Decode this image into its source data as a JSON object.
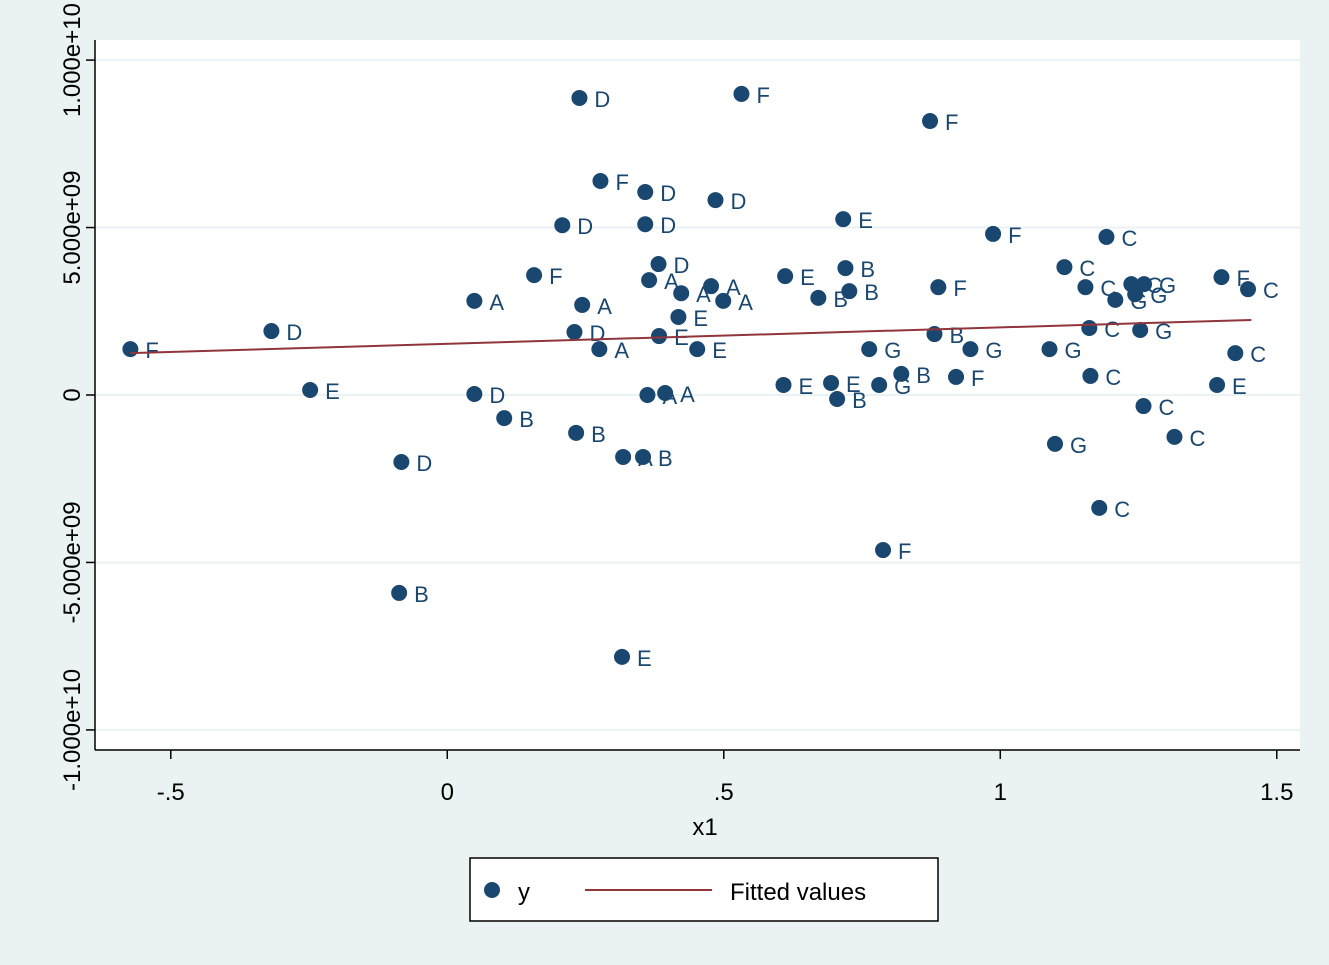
{
  "chart_data": {
    "type": "scatter",
    "xlabel": "x1",
    "xlim": [
      -0.637,
      1.542
    ],
    "ylim": [
      -10600000000.0,
      10600000000.0
    ],
    "xticks": [
      {
        "value": -0.5,
        "label": "-.5"
      },
      0,
      {
        "value": 0.5,
        "label": ".5"
      },
      1,
      1.5
    ],
    "yticks": [
      {
        "value": -10000000000.0,
        "label": "-1.000e+10"
      },
      {
        "value": -5000000000.0,
        "label": "-5.000e+09"
      },
      0,
      {
        "value": 5000000000.0,
        "label": "5.000e+09"
      },
      {
        "value": 10000000000.0,
        "label": "1.000e+10"
      }
    ],
    "grid": true,
    "legend": "bottom",
    "series": [
      {
        "name": "y",
        "type": "scatter",
        "color": "#1a476f",
        "x": [
          -0.573,
          -0.318,
          -0.248,
          -0.083,
          -0.087,
          0.049,
          0.049,
          0.103,
          0.157,
          0.208,
          0.239,
          0.244,
          0.23,
          0.233,
          0.277,
          0.275,
          0.318,
          0.316,
          0.358,
          0.358,
          0.365,
          0.382,
          0.383,
          0.362,
          0.354,
          0.394,
          0.418,
          0.423,
          0.452,
          0.477,
          0.485,
          0.499,
          0.532,
          0.611,
          0.608,
          0.671,
          0.694,
          0.705,
          0.716,
          0.72,
          0.727,
          0.763,
          0.781,
          0.788,
          0.821,
          0.873,
          0.881,
          0.888,
          0.92,
          0.946,
          0.987,
          1.089,
          1.099,
          1.116,
          1.154,
          1.161,
          1.163,
          1.179,
          1.192,
          1.208,
          1.237,
          1.244,
          1.26,
          1.253,
          1.259,
          1.315,
          1.392,
          1.4,
          1.425,
          1.448
        ],
        "values": [
          1370000000.0,
          1910000000.0,
          150000000.0,
          -2000000000.0,
          -5910000000.0,
          2810000000.0,
          30000000.0,
          -690000000.0,
          3580000000.0,
          5070000000.0,
          8870000000.0,
          2690000000.0,
          1880000000.0,
          -1130000000.0,
          6390000000.0,
          1370000000.0,
          -1850000000.0,
          -7820000000.0,
          6060000000.0,
          5100000000.0,
          3430000000.0,
          3910000000.0,
          1760000000.0,
          0.0,
          -1850000000.0,
          60000000.0,
          2330000000.0,
          3040000000.0,
          1370000000.0,
          3250000000.0,
          5820000000.0,
          2810000000.0,
          8990000000.0,
          3550000000.0,
          300000000.0,
          2900000000.0,
          360000000.0,
          -120000000.0,
          5250000000.0,
          3790000000.0,
          3100000000.0,
          1370000000.0,
          300000000.0,
          -4630000000.0,
          630000000.0,
          8180000000.0,
          1820000000.0,
          3220000000.0,
          540000000.0,
          1370000000.0,
          4810000000.0,
          1370000000.0,
          -1460000000.0,
          3820000000.0,
          3220000000.0,
          2000000000.0,
          570000000.0,
          -3370000000.0,
          4720000000.0,
          2840000000.0,
          3310000000.0,
          3010000000.0,
          3310000000.0,
          1940000000.0,
          -330000000.0,
          -1250000000.0,
          300000000.0,
          3520000000.0,
          1250000000.0,
          3160000000.0
        ],
        "point_labels": [
          "F",
          "D",
          "E",
          "D",
          "B",
          "A",
          "D",
          "B",
          "F",
          "D",
          "D",
          "A",
          "D",
          "B",
          "F",
          "A",
          "A",
          "E",
          "D",
          "D",
          "A",
          "D",
          "E",
          "A",
          "B",
          "A",
          "E",
          "A",
          "E",
          "A",
          "D",
          "A",
          "F",
          "E",
          "E",
          "B",
          "E",
          "B",
          "E",
          "B",
          "B",
          "G",
          "G",
          "F",
          "B",
          "F",
          "B",
          "F",
          "F",
          "G",
          "F",
          "G",
          "G",
          "C",
          "C",
          "C",
          "C",
          "C",
          "C",
          "G",
          "C",
          "G",
          "G",
          "G",
          "C",
          "C",
          "E",
          "F",
          "C",
          "C"
        ]
      },
      {
        "name": "Fitted values",
        "type": "line",
        "color": "#90353b",
        "x": [
          -0.573,
          1.454
        ],
        "values": [
          1250000000.0,
          2240000000.0
        ]
      }
    ]
  }
}
